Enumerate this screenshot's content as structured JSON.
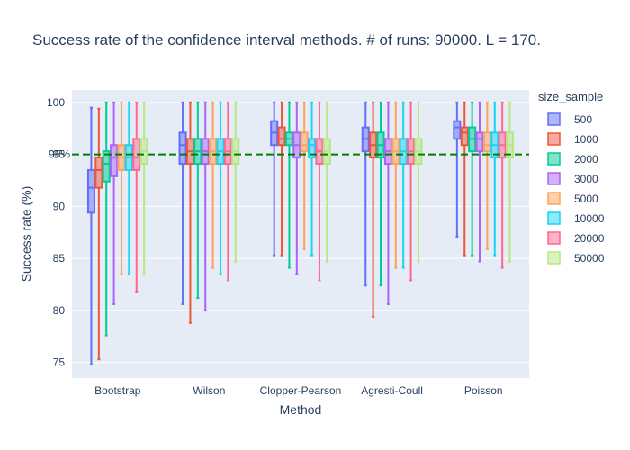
{
  "chart_data": {
    "type": "box",
    "title": "Success rate of the confidence interval methods. # of runs: 90000. L = 170.",
    "xlabel": "Method",
    "ylabel": "Success rate (%)",
    "ylim": [
      73.5,
      101.2
    ],
    "yticks": [
      75,
      80,
      85,
      90,
      95,
      100
    ],
    "grid": true,
    "reference_line": {
      "value": 95,
      "label": "95%",
      "color": "#008000",
      "style": "dashed"
    },
    "categories": [
      "Bootstrap",
      "Wilson",
      "Clopper-Pearson",
      "Agresti-Coull",
      "Poisson"
    ],
    "legend": {
      "title": "size_sample",
      "position": "right"
    },
    "series": [
      {
        "name": "500",
        "color": "#636efa",
        "boxes": [
          {
            "min": 74.8,
            "q1": 89.4,
            "median": 91.8,
            "q3": 93.5,
            "max": 99.5
          },
          {
            "min": 80.6,
            "q1": 94.1,
            "median": 95.9,
            "q3": 97.1,
            "max": 100
          },
          {
            "min": 85.3,
            "q1": 95.9,
            "median": 97.1,
            "q3": 98.2,
            "max": 100
          },
          {
            "min": 82.4,
            "q1": 95.3,
            "median": 96.5,
            "q3": 97.6,
            "max": 100
          },
          {
            "min": 87.1,
            "q1": 96.5,
            "median": 97.6,
            "q3": 98.2,
            "max": 100
          }
        ]
      },
      {
        "name": "1000",
        "color": "#ef553b",
        "boxes": [
          {
            "min": 75.3,
            "q1": 91.8,
            "median": 93.5,
            "q3": 94.7,
            "max": 99.4
          },
          {
            "min": 78.8,
            "q1": 94.1,
            "median": 95.3,
            "q3": 96.5,
            "max": 100
          },
          {
            "min": 85.3,
            "q1": 95.9,
            "median": 96.5,
            "q3": 97.6,
            "max": 100
          },
          {
            "min": 79.4,
            "q1": 94.7,
            "median": 95.9,
            "q3": 97.1,
            "max": 100
          },
          {
            "min": 85.3,
            "q1": 95.9,
            "median": 97.1,
            "q3": 97.6,
            "max": 100
          }
        ]
      },
      {
        "name": "2000",
        "color": "#00cc96",
        "boxes": [
          {
            "min": 77.6,
            "q1": 92.4,
            "median": 94.1,
            "q3": 95.3,
            "max": 100
          },
          {
            "min": 81.2,
            "q1": 94.1,
            "median": 95.3,
            "q3": 96.5,
            "max": 100
          },
          {
            "min": 84.1,
            "q1": 95.9,
            "median": 96.5,
            "q3": 97.1,
            "max": 100
          },
          {
            "min": 82.4,
            "q1": 94.7,
            "median": 95.9,
            "q3": 97.1,
            "max": 100
          },
          {
            "min": 85.3,
            "q1": 95.3,
            "median": 96.5,
            "q3": 97.6,
            "max": 100
          }
        ]
      },
      {
        "name": "3000",
        "color": "#ab63fa",
        "boxes": [
          {
            "min": 80.6,
            "q1": 92.9,
            "median": 94.7,
            "q3": 95.9,
            "max": 100
          },
          {
            "min": 80.0,
            "q1": 94.1,
            "median": 95.3,
            "q3": 96.5,
            "max": 100
          },
          {
            "min": 83.5,
            "q1": 94.7,
            "median": 95.9,
            "q3": 97.1,
            "max": 100
          },
          {
            "min": 80.6,
            "q1": 94.1,
            "median": 95.3,
            "q3": 96.5,
            "max": 100
          },
          {
            "min": 84.7,
            "q1": 95.3,
            "median": 96.5,
            "q3": 97.1,
            "max": 100
          }
        ]
      },
      {
        "name": "5000",
        "color": "#ffa15a",
        "boxes": [
          {
            "min": 83.5,
            "q1": 93.5,
            "median": 94.7,
            "q3": 95.9,
            "max": 100
          },
          {
            "min": 84.1,
            "q1": 94.1,
            "median": 95.3,
            "q3": 96.5,
            "max": 100
          },
          {
            "min": 85.9,
            "q1": 95.3,
            "median": 95.9,
            "q3": 97.1,
            "max": 100
          },
          {
            "min": 84.1,
            "q1": 94.1,
            "median": 95.3,
            "q3": 96.5,
            "max": 100
          },
          {
            "min": 85.9,
            "q1": 95.3,
            "median": 95.9,
            "q3": 97.1,
            "max": 100
          }
        ]
      },
      {
        "name": "10000",
        "color": "#19d3f3",
        "boxes": [
          {
            "min": 83.5,
            "q1": 93.5,
            "median": 94.7,
            "q3": 95.9,
            "max": 100
          },
          {
            "min": 83.5,
            "q1": 94.1,
            "median": 95.3,
            "q3": 96.5,
            "max": 100
          },
          {
            "min": 85.3,
            "q1": 94.7,
            "median": 95.9,
            "q3": 96.5,
            "max": 100
          },
          {
            "min": 84.1,
            "q1": 94.1,
            "median": 95.3,
            "q3": 96.5,
            "max": 100
          },
          {
            "min": 85.3,
            "q1": 94.7,
            "median": 95.9,
            "q3": 97.1,
            "max": 100
          }
        ]
      },
      {
        "name": "20000",
        "color": "#ff6692",
        "boxes": [
          {
            "min": 81.8,
            "q1": 93.5,
            "median": 94.7,
            "q3": 96.5,
            "max": 100
          },
          {
            "min": 82.9,
            "q1": 94.1,
            "median": 95.3,
            "q3": 96.5,
            "max": 100
          },
          {
            "min": 82.9,
            "q1": 94.1,
            "median": 95.3,
            "q3": 96.5,
            "max": 100
          },
          {
            "min": 82.9,
            "q1": 94.1,
            "median": 95.3,
            "q3": 96.5,
            "max": 100
          },
          {
            "min": 84.1,
            "q1": 94.7,
            "median": 95.9,
            "q3": 97.1,
            "max": 100
          }
        ]
      },
      {
        "name": "50000",
        "color": "#b6e880",
        "boxes": [
          {
            "min": 83.5,
            "q1": 94.1,
            "median": 95.3,
            "q3": 96.5,
            "max": 100
          },
          {
            "min": 84.7,
            "q1": 94.1,
            "median": 95.3,
            "q3": 96.5,
            "max": 100
          },
          {
            "min": 84.7,
            "q1": 94.1,
            "median": 95.3,
            "q3": 96.5,
            "max": 100
          },
          {
            "min": 84.7,
            "q1": 94.1,
            "median": 95.3,
            "q3": 96.5,
            "max": 100
          },
          {
            "min": 84.7,
            "q1": 94.7,
            "median": 95.9,
            "q3": 97.1,
            "max": 100
          }
        ]
      }
    ]
  }
}
